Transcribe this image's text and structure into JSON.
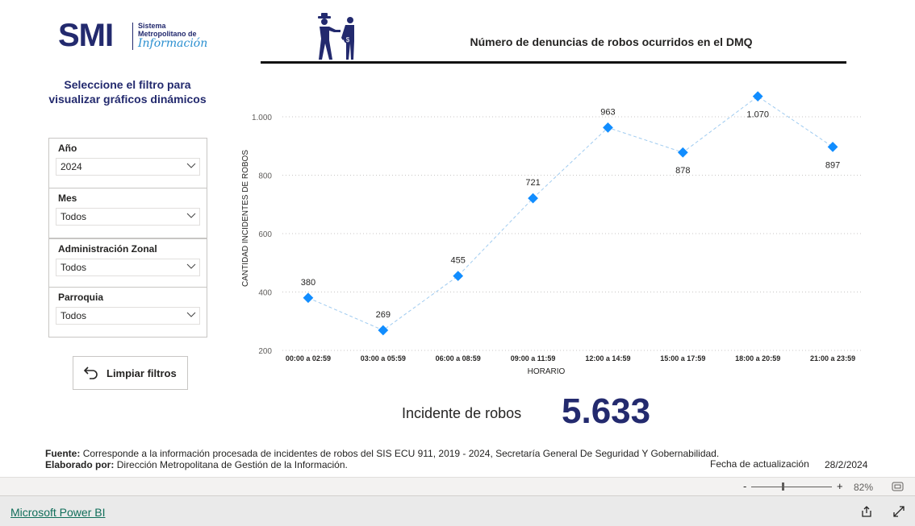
{
  "logo": {
    "acronym": "SMI",
    "line1": "Sistema",
    "line2": "Metropolitano de",
    "line3": "Información"
  },
  "filter_prompt": "Seleccione el filtro para visualizar gráficos dinámicos",
  "filters": [
    {
      "label": "Año",
      "value": "2024"
    },
    {
      "label": "Mes",
      "value": "Todos"
    },
    {
      "label": "Administración Zonal",
      "value": "Todos"
    },
    {
      "label": "Parroquia",
      "value": "Todos"
    }
  ],
  "clear_button": "Limpiar filtros",
  "chart_data": {
    "type": "line",
    "title": "Número de denuncias de robos ocurridos en el DMQ",
    "xlabel": "HORARIO",
    "ylabel": "CANTIDAD INCIDENTES DE ROBOS",
    "categories": [
      "00:00 a 02:59",
      "03:00 a 05:59",
      "06:00 a 08:59",
      "09:00 a 11:59",
      "12:00 a 14:59",
      "15:00 a 17:59",
      "18:00 a 20:59",
      "21:00 a 23:59"
    ],
    "values": [
      380,
      269,
      455,
      721,
      963,
      878,
      1070,
      897
    ],
    "value_labels": [
      "380",
      "269",
      "455",
      "721",
      "963",
      "878",
      "1.070",
      "897"
    ],
    "color": "#118dff",
    "ylim": [
      200,
      1100
    ],
    "yticks": [
      200,
      400,
      600,
      800,
      {
        "value": 1000,
        "label": "1.000"
      }
    ],
    "grid": true
  },
  "kpi": {
    "label": "Incidente de robos",
    "value": "5.633"
  },
  "footer": {
    "source_label": "Fuente:",
    "source_text": "Corresponde a la información procesada de incidentes de robos del SIS ECU 911, 2019 - 2024, Secretaría General De Seguridad Y Gobernabilidad.",
    "author_label": "Elaborado por:",
    "author_text": "Dirección Metropolitana de Gestión de la Información.",
    "update_label": "Fecha de actualización",
    "update_date": "28/2/2024"
  },
  "zoom": {
    "minus": "-",
    "plus": "+",
    "level": "82%"
  },
  "brand": "Microsoft Power BI"
}
